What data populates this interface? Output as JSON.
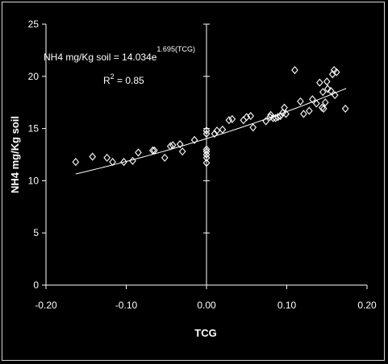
{
  "chart_data": {
    "type": "scatter",
    "title": "",
    "xlabel": "TCG",
    "ylabel": "NH4 mg/Kg soil",
    "xlim": [
      -0.2,
      0.2
    ],
    "ylim": [
      0,
      25
    ],
    "xticks": [
      "-0.20",
      "-0.10",
      "0.00",
      "0.10",
      "0.20"
    ],
    "xtick_values": [
      -0.2,
      -0.1,
      0.0,
      0.1,
      0.2
    ],
    "yticks": [
      "0",
      "5",
      "10",
      "15",
      "20",
      "25"
    ],
    "ytick_values": [
      0,
      5,
      10,
      15,
      20,
      25
    ],
    "grid": false,
    "legend": "none",
    "marker": "diamond",
    "colors": {
      "background": "#000000",
      "marks": "#ffffff",
      "frame": "#d9d9d9"
    },
    "equation_text": "NH4 mg/Kg soil = 14.034e",
    "equation_exponent": "1.695(TCG)",
    "r2_label": "R",
    "r2_sup": "2",
    "r2_value": " = 0.85",
    "trendline": {
      "type": "exponential",
      "a": 14.034,
      "b": 1.695,
      "x_range": [
        -0.163,
        0.174
      ]
    },
    "points": [
      [
        -0.163,
        11.8
      ],
      [
        -0.142,
        12.3
      ],
      [
        -0.124,
        12.2
      ],
      [
        -0.117,
        11.8
      ],
      [
        -0.103,
        11.8
      ],
      [
        -0.092,
        11.9
      ],
      [
        -0.085,
        12.7
      ],
      [
        -0.067,
        12.9
      ],
      [
        -0.065,
        12.9
      ],
      [
        -0.052,
        12.2
      ],
      [
        -0.045,
        13.3
      ],
      [
        -0.042,
        13.4
      ],
      [
        -0.033,
        13.5
      ],
      [
        -0.03,
        12.8
      ],
      [
        -0.015,
        13.9
      ],
      [
        0.0,
        11.7
      ],
      [
        0.0,
        12.2
      ],
      [
        0.0,
        12.5
      ],
      [
        0.0,
        12.8
      ],
      [
        0.0,
        13.0
      ],
      [
        0.0,
        14.5
      ],
      [
        0.0,
        14.8
      ],
      [
        0.01,
        14.5
      ],
      [
        0.013,
        14.8
      ],
      [
        0.02,
        14.9
      ],
      [
        0.028,
        15.8
      ],
      [
        0.032,
        15.9
      ],
      [
        0.046,
        15.8
      ],
      [
        0.05,
        16.1
      ],
      [
        0.055,
        16.2
      ],
      [
        0.058,
        15.1
      ],
      [
        0.074,
        15.7
      ],
      [
        0.079,
        16.1
      ],
      [
        0.08,
        16.3
      ],
      [
        0.083,
        16.0
      ],
      [
        0.086,
        16.0
      ],
      [
        0.089,
        16.1
      ],
      [
        0.092,
        16.2
      ],
      [
        0.095,
        16.5
      ],
      [
        0.097,
        17.0
      ],
      [
        0.099,
        16.4
      ],
      [
        0.11,
        20.6
      ],
      [
        0.117,
        17.6
      ],
      [
        0.121,
        16.4
      ],
      [
        0.128,
        16.7
      ],
      [
        0.132,
        17.8
      ],
      [
        0.137,
        17.4
      ],
      [
        0.141,
        19.4
      ],
      [
        0.144,
        17.0
      ],
      [
        0.145,
        18.5
      ],
      [
        0.146,
        16.9
      ],
      [
        0.148,
        17.5
      ],
      [
        0.15,
        19.5
      ],
      [
        0.151,
        18.8
      ],
      [
        0.155,
        18.6
      ],
      [
        0.157,
        20.2
      ],
      [
        0.159,
        20.6
      ],
      [
        0.16,
        18.2
      ],
      [
        0.162,
        20.4
      ],
      [
        0.173,
        16.9
      ]
    ]
  }
}
